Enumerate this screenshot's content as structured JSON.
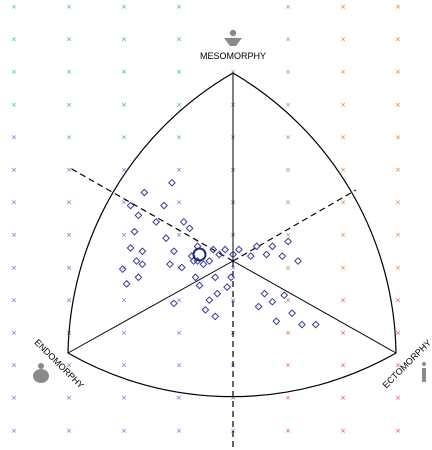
{
  "chart_data": {
    "type": "scatter",
    "title": "",
    "axes": [
      "MESOMORPHY",
      "ENDOMORPHY",
      "ECTOMORPHY"
    ],
    "x_range": [
      -8,
      8
    ],
    "y_range": [
      -8,
      12
    ],
    "grid": true,
    "grid_colors": {
      "cyan": "#3fb6c8",
      "green": "#3ab54a",
      "blue": "#4a6fd8",
      "olive": "#a58a3a",
      "orange": "#e87a1d",
      "red": "#e8474a"
    },
    "colors": {
      "points": "#3a3a9e",
      "mean": "#1a2a6a",
      "frame": "#000000",
      "figures": "#8a8a8a"
    },
    "points": [
      {
        "x": -4.5,
        "y": 4.2
      },
      {
        "x": -3.1,
        "y": 4.8
      },
      {
        "x": -5.2,
        "y": 3.4
      },
      {
        "x": -3.5,
        "y": 3.4
      },
      {
        "x": -4.8,
        "y": 2.8
      },
      {
        "x": -3.9,
        "y": 2.4
      },
      {
        "x": -2.5,
        "y": 2.4
      },
      {
        "x": -2.2,
        "y": 2.0
      },
      {
        "x": -5.0,
        "y": 1.8
      },
      {
        "x": -3.4,
        "y": 1.4
      },
      {
        "x": -5.2,
        "y": 0.8
      },
      {
        "x": -4.6,
        "y": 0.6
      },
      {
        "x": -3.0,
        "y": 0.6
      },
      {
        "x": -1.8,
        "y": 0.9
      },
      {
        "x": -1.0,
        "y": 0.7
      },
      {
        "x": -4.9,
        "y": 0.0
      },
      {
        "x": -4.6,
        "y": -0.2
      },
      {
        "x": -3.2,
        "y": -0.2
      },
      {
        "x": -2.6,
        "y": -0.4
      },
      {
        "x": -2.1,
        "y": 0.3
      },
      {
        "x": -2.0,
        "y": 0.0
      },
      {
        "x": -1.8,
        "y": 0.0
      },
      {
        "x": -1.5,
        "y": -0.2
      },
      {
        "x": -1.2,
        "y": 0.0
      },
      {
        "x": -0.7,
        "y": 0.4
      },
      {
        "x": -0.4,
        "y": 0.7
      },
      {
        "x": 0.0,
        "y": 0.4
      },
      {
        "x": 0.3,
        "y": 0.7
      },
      {
        "x": 1.2,
        "y": 0.9
      },
      {
        "x": 2.0,
        "y": 0.9
      },
      {
        "x": 2.8,
        "y": 1.2
      },
      {
        "x": 0.9,
        "y": 0.3
      },
      {
        "x": 1.7,
        "y": 0.4
      },
      {
        "x": 2.5,
        "y": 0.3
      },
      {
        "x": 3.3,
        "y": 0.0
      },
      {
        "x": -5.6,
        "y": -0.5
      },
      {
        "x": -4.8,
        "y": -1.0
      },
      {
        "x": -1.9,
        "y": -1.0
      },
      {
        "x": -0.9,
        "y": -1.0
      },
      {
        "x": -0.1,
        "y": -1.0
      },
      {
        "x": -1.7,
        "y": -1.5
      },
      {
        "x": -0.3,
        "y": -1.6
      },
      {
        "x": -0.8,
        "y": -2.0
      },
      {
        "x": -1.2,
        "y": -2.4
      },
      {
        "x": 1.6,
        "y": -2.0
      },
      {
        "x": 2.0,
        "y": -2.5
      },
      {
        "x": 2.6,
        "y": -2.1
      },
      {
        "x": -3.0,
        "y": -2.6
      },
      {
        "x": -1.4,
        "y": -3.0
      },
      {
        "x": -0.9,
        "y": -3.4
      },
      {
        "x": 1.3,
        "y": -2.8
      },
      {
        "x": 2.2,
        "y": -3.7
      },
      {
        "x": 3.0,
        "y": -3.2
      },
      {
        "x": 3.5,
        "y": -3.9
      },
      {
        "x": 4.2,
        "y": -3.9
      },
      {
        "x": -5.4,
        "y": -1.4
      }
    ],
    "mean_point": {
      "x": -1.7,
      "y": 0.4
    }
  }
}
